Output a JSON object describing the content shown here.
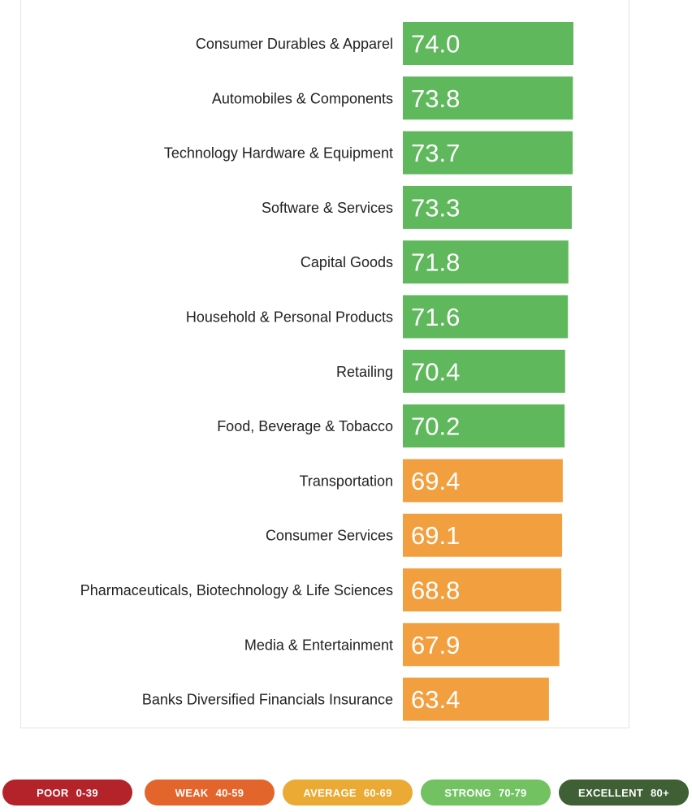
{
  "chart_data": {
    "type": "bar",
    "orientation": "horizontal",
    "categories": [
      "Consumer Durables & Apparel",
      "Automobiles & Components",
      "Technology Hardware & Equipment",
      "Software & Services",
      "Capital Goods",
      "Household & Personal Products",
      "Retailing",
      "Food, Beverage & Tobacco",
      "Transportation",
      "Consumer Services",
      "Pharmaceuticals, Biotechnology & Life Sciences",
      "Media & Entertainment",
      "Banks Diversified Financials Insurance"
    ],
    "values": [
      74.0,
      73.8,
      73.7,
      73.3,
      71.8,
      71.6,
      70.4,
      70.2,
      69.4,
      69.1,
      68.8,
      67.9,
      63.4
    ],
    "value_labels": [
      "74.0",
      "73.8",
      "73.7",
      "73.3",
      "71.8",
      "71.6",
      "70.4",
      "70.2",
      "69.4",
      "69.1",
      "68.8",
      "67.9",
      "63.4"
    ],
    "title": "",
    "xlabel": "",
    "ylabel": "",
    "grid": false,
    "legend_position": "bottom",
    "legend": [
      {
        "name": "POOR",
        "range": "0-39",
        "min": 0,
        "max": 39,
        "color": "#b5232a"
      },
      {
        "name": "WEAK",
        "range": "40-59",
        "min": 40,
        "max": 59,
        "color": "#e4652b"
      },
      {
        "name": "AVERAGE",
        "range": "60-69",
        "min": 60,
        "max": 69,
        "color": "#eaaa33"
      },
      {
        "name": "STRONG",
        "range": "70-79",
        "min": 70,
        "max": 79,
        "color": "#72c262"
      },
      {
        "name": "EXCELLENT",
        "range": "80+",
        "min": 80,
        "max": 100,
        "color": "#3f5f35"
      }
    ],
    "bar_colors": {
      "strong": "#5fb85c",
      "average": "#f2a03f"
    }
  }
}
